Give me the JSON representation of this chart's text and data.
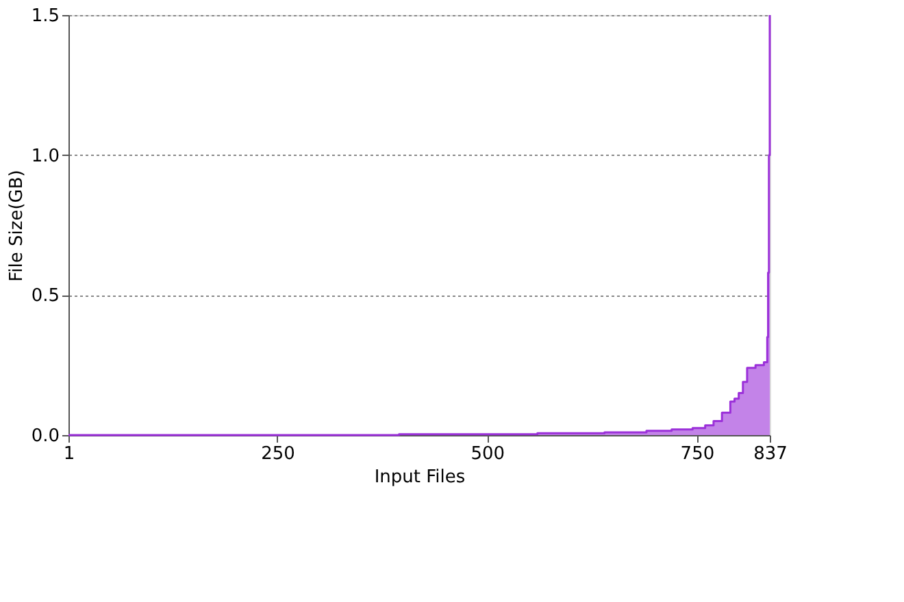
{
  "chart_data": {
    "type": "area",
    "xlabel": "Input Files",
    "ylabel": "File Size(GB)",
    "series": [
      {
        "color": "#9b30d9",
        "x": [
          1,
          395,
          560,
          640,
          690,
          720,
          745,
          760,
          770,
          780,
          790,
          795,
          800,
          805,
          810,
          815,
          820,
          830,
          834,
          835,
          836,
          837
        ],
        "values": [
          0,
          0.003,
          0.007,
          0.01,
          0.015,
          0.02,
          0.025,
          0.035,
          0.05,
          0.08,
          0.12,
          0.13,
          0.15,
          0.19,
          0.24,
          0.24,
          0.25,
          0.26,
          0.35,
          0.58,
          1.0,
          1.5
        ]
      }
    ],
    "xlim": [
      1,
      837
    ],
    "xticks": [
      1,
      250,
      500,
      750,
      837
    ],
    "ylim": [
      0,
      1.5
    ],
    "yticks": [
      {
        "value": 0,
        "label": "0.0"
      },
      {
        "value": 0.5,
        "label": "0.5"
      },
      {
        "value": 1.0,
        "label": "1.0"
      },
      {
        "value": 1.5,
        "label": "1.5"
      }
    ],
    "grid": "y"
  }
}
